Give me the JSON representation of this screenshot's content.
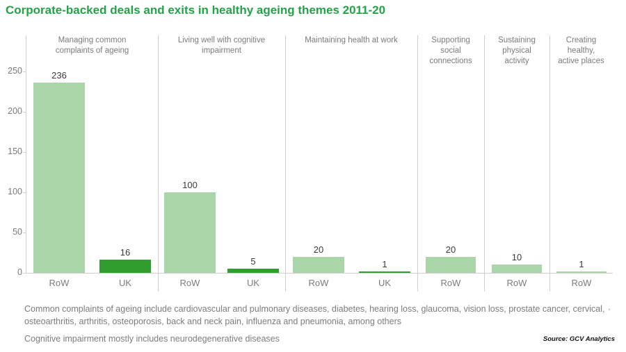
{
  "title": "Corporate-backed deals and exits in healthy ageing themes 2011-20",
  "colors": {
    "title": "#22a347",
    "bar_row": "#a9d5a8",
    "bar_uk": "#2f9e2f",
    "axis_text": "#7b7b7b",
    "value_text": "#3a3a3a",
    "grid_line": "#cfcfcf",
    "footnote_text": "#7c7c7c",
    "source_text": "#111111"
  },
  "chart_data": {
    "type": "bar",
    "title": "Corporate-backed deals and exits in healthy ageing themes 2011-20",
    "xlabel": "",
    "ylabel": "",
    "ylim": [
      0,
      250
    ],
    "yticks": [
      0,
      50,
      100,
      150,
      200,
      250
    ],
    "grid": false,
    "legend": "none",
    "panels": [
      {
        "label": "Managing common\ncomplaints of ageing",
        "bars": [
          {
            "category": "RoW",
            "value": 236
          },
          {
            "category": "UK",
            "value": 16
          }
        ]
      },
      {
        "label": "Living well with cognitive\nimpairment",
        "bars": [
          {
            "category": "RoW",
            "value": 100
          },
          {
            "category": "UK",
            "value": 5
          }
        ]
      },
      {
        "label": "Maintaining health at work",
        "bars": [
          {
            "category": "RoW",
            "value": 20
          },
          {
            "category": "UK",
            "value": 1
          }
        ]
      },
      {
        "label": "Supporting\nsocial\nconnections",
        "bars": [
          {
            "category": "RoW",
            "value": 20
          }
        ]
      },
      {
        "label": "Sustaining\nphysical\nactivity",
        "bars": [
          {
            "category": "RoW",
            "value": 10
          }
        ]
      },
      {
        "label": "Creating\nhealthy,\nactive places",
        "bars": [
          {
            "category": "RoW",
            "value": 1
          }
        ]
      }
    ]
  },
  "footnotes": {
    "footnote1": "Common complaints of ageing include cardiovascular and pulmonary diseases, diabetes, hearing loss, glaucoma, vision loss, prostate cancer, cervical, osteoarthritis, arthritis, osteoporosis, back and neck pain, influenza and pneumonia, among others",
    "footnote_mark": "'",
    "footnote2": "Cognitive impairment mostly includes neurodegenerative diseases"
  },
  "source": "Source: GCV Analytics"
}
